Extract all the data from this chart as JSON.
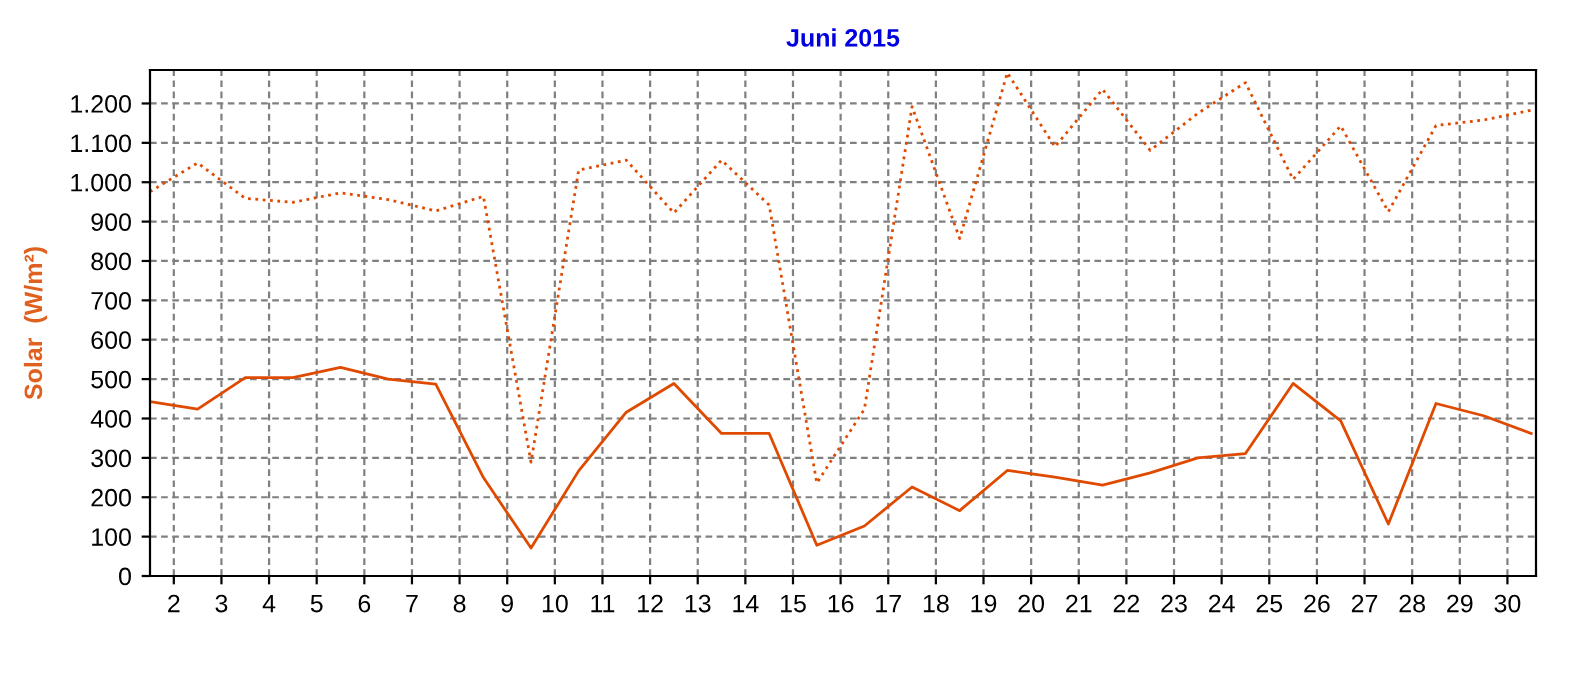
{
  "chart_data": {
    "type": "line",
    "title": "Juni 2015",
    "ylabel": "Solar  (W/m²)",
    "x": [
      1.5,
      2.5,
      3.5,
      4.5,
      5.5,
      6.5,
      7.5,
      8.5,
      9.5,
      10.5,
      11.5,
      12.5,
      13.5,
      14.5,
      15.5,
      16.5,
      17.5,
      18.5,
      19.5,
      20.5,
      21.5,
      22.5,
      23.5,
      24.5,
      25.5,
      26.5,
      27.5,
      28.5,
      29.5,
      30.5
    ],
    "series": [
      {
        "color": "#e04a00",
        "line_style": "dotted",
        "values": [
          976,
          1049,
          959,
          949,
          973,
          956,
          927,
          964,
          289,
          1031,
          1056,
          922,
          1056,
          942,
          236,
          424,
          1192,
          857,
          1278,
          1090,
          1236,
          1081,
          1175,
          1253,
          1007,
          1143,
          925,
          1144,
          1158,
          1183
        ]
      },
      {
        "color": "#e04a00",
        "line_style": "solid",
        "values": [
          443,
          424,
          504,
          504,
          530,
          500,
          487,
          250,
          71,
          267,
          416,
          489,
          362,
          362,
          78,
          127,
          226,
          166,
          268,
          251,
          231,
          262,
          300,
          311,
          489,
          394,
          132,
          438,
          407,
          362
        ]
      }
    ],
    "xlim": [
      1.5,
      30.6
    ],
    "xticks": [
      2,
      3,
      4,
      5,
      6,
      7,
      8,
      9,
      10,
      11,
      12,
      13,
      14,
      15,
      16,
      17,
      18,
      19,
      20,
      21,
      22,
      23,
      24,
      25,
      26,
      27,
      28,
      29,
      30
    ],
    "ylim": [
      0,
      1285
    ],
    "yticks": [
      0,
      100,
      200,
      300,
      400,
      500,
      600,
      700,
      800,
      900,
      {
        "value": 1000,
        "label": "1.000"
      },
      {
        "value": 1100,
        "label": "1.100"
      },
      {
        "value": 1200,
        "label": "1.200"
      }
    ],
    "grid": true,
    "legend": false,
    "marker": "none"
  }
}
